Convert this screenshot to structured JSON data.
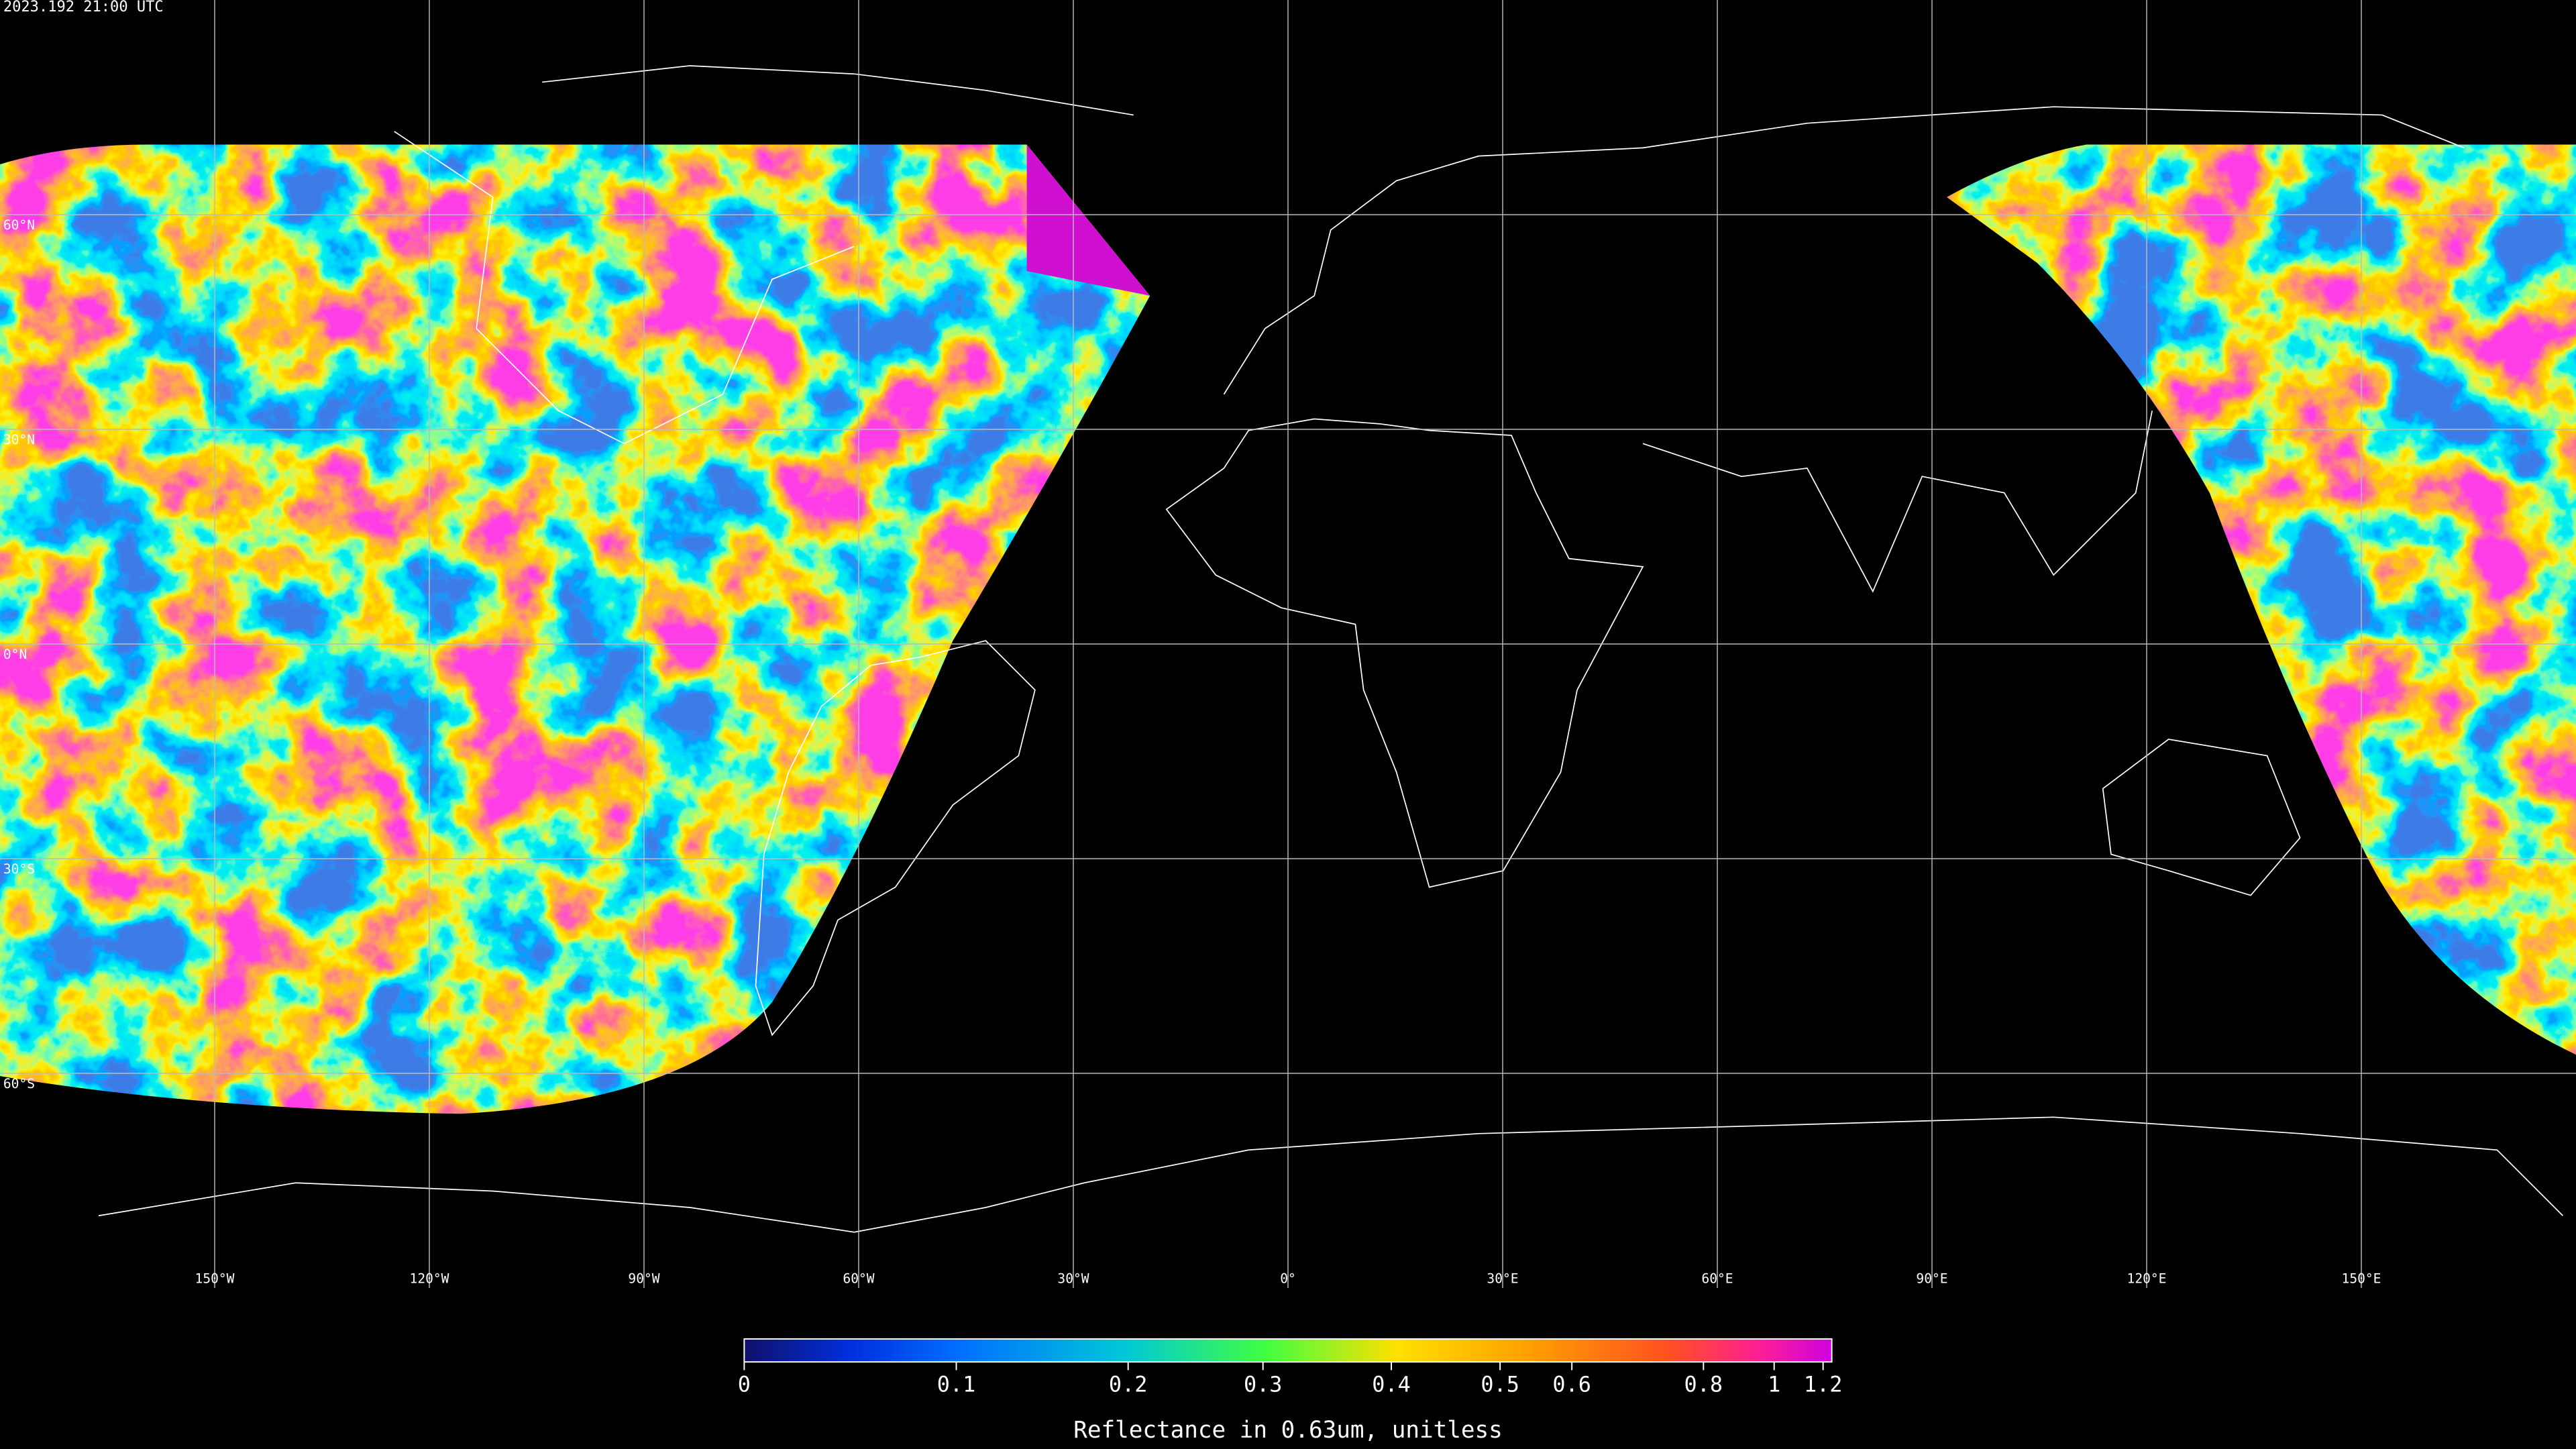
{
  "header": {
    "timestamp": "2023.192 21:00 UTC"
  },
  "map": {
    "latitude_labels": [
      {
        "value": 60,
        "label": "60°N"
      },
      {
        "value": 30,
        "label": "30°N"
      },
      {
        "value": 0,
        "label": "0°N"
      },
      {
        "value": -30,
        "label": "30°S"
      },
      {
        "value": -60,
        "label": "60°S"
      }
    ],
    "longitude_labels": [
      {
        "value": -150,
        "label": "150°W"
      },
      {
        "value": -120,
        "label": "120°W"
      },
      {
        "value": -90,
        "label": "90°W"
      },
      {
        "value": -60,
        "label": "60°W"
      },
      {
        "value": -30,
        "label": "30°W"
      },
      {
        "value": 0,
        "label": "0°"
      },
      {
        "value": 30,
        "label": "30°E"
      },
      {
        "value": 60,
        "label": "60°E"
      },
      {
        "value": 90,
        "label": "90°E"
      },
      {
        "value": 120,
        "label": "120°E"
      },
      {
        "value": 150,
        "label": "150°E"
      }
    ]
  },
  "colorbar": {
    "ticks": [
      0,
      0.1,
      0.2,
      0.3,
      0.4,
      0.5,
      0.6,
      0.8,
      1,
      1.2
    ],
    "label": "Reflectance in 0.63um, unitless"
  }
}
